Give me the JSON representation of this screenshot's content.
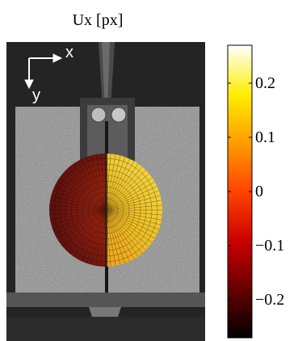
{
  "figure": {
    "title": "Ux [px]",
    "axis_x_label": "x",
    "axis_y_label": "y"
  },
  "colorbar": {
    "colormap": "hot",
    "range": [
      -0.27,
      0.27
    ],
    "ticks": [
      {
        "value": 0.2,
        "label": "0.2"
      },
      {
        "value": 0.1,
        "label": "0.1"
      },
      {
        "value": 0,
        "label": "0"
      },
      {
        "value": -0.1,
        "label": "−0.1"
      },
      {
        "value": -0.2,
        "label": "−0.2"
      }
    ]
  },
  "overlay": {
    "type": "circular displacement field",
    "left_half_value": -0.15,
    "right_half_value": 0.22
  }
}
